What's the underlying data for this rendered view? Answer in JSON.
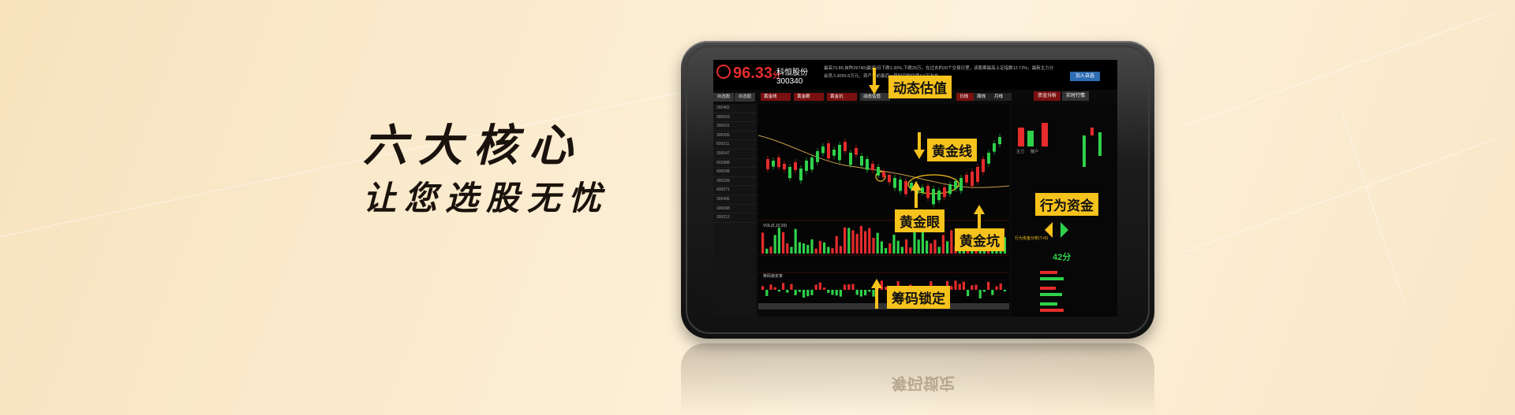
{
  "slogan": {
    "line1": "六大核心",
    "line2": "让您选股无忧"
  },
  "app": {
    "score": "96.33",
    "score_unit": "分",
    "stock_name": "科恒股份",
    "stock_code": "300340",
    "header_note": "最高73.86,自昨26740(最近)日下跌1.30%,下跌26万。在过去的20个交易日里，该股票最高上证指数12.72%，最新主力分",
    "header_note2": "会员入3055.6万元，资产于前最近一段时间的估值4.0万左右",
    "add_button": "加入自选",
    "tabs": {
      "self_select": "自选股",
      "trend": "自选股"
    },
    "selectors": [
      "黄金线",
      "黄金眼",
      "黄金坑"
    ],
    "dynamic_label": "动态估值",
    "right_tabs": [
      "资金分析",
      "实时行情"
    ],
    "chart_tabs": [
      "日线",
      "周线",
      "月线"
    ],
    "sidebar": [
      "300482",
      "300003",
      "300031",
      "300006",
      "600211",
      "300047",
      "603988",
      "600048",
      "300109",
      "600071",
      "300406",
      "300098",
      "300212"
    ],
    "right_stats": [
      "主力",
      "散户",
      "多头",
      "空头"
    ],
    "behavior_title": "行为资金分析(T+0)",
    "score42": "42分",
    "vol_label": "VOL(5,10,20)",
    "chip_label": "筹码锁定率"
  },
  "callouts": {
    "dynamic_valuation": "动态估值",
    "golden_line": "黄金线",
    "golden_eye": "黄金眼",
    "golden_pit": "黄金坑",
    "behavior_funds": "行为资金",
    "chip_lock": "筹码锁定"
  },
  "colors": {
    "accent": "#f6c21c",
    "up": "#e62b2b",
    "down": "#2fd14a",
    "bg": "#fbecd0"
  }
}
